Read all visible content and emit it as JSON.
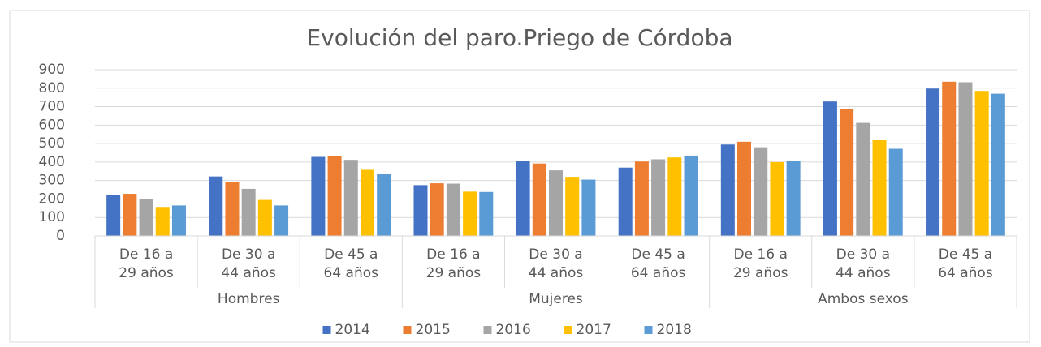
{
  "chart_data": {
    "type": "bar",
    "title": "Evolución del paro.Priego de Córdoba",
    "categories": [
      [
        "De 16 a",
        "29 años"
      ],
      [
        "De 30 a",
        "44 años"
      ],
      [
        "De 45 a",
        "64 años"
      ],
      [
        "De 16 a",
        "29 años"
      ],
      [
        "De 30 a",
        "44 años"
      ],
      [
        "De 45 a",
        "64 años"
      ],
      [
        "De 16 a",
        "29 años"
      ],
      [
        "De 30 a",
        "44 años"
      ],
      [
        "De 45 a",
        "64 años"
      ]
    ],
    "groups": [
      "Hombres",
      "Mujeres",
      "Ambos sexos"
    ],
    "series": [
      {
        "name": "2014",
        "color": "#4472c4",
        "values": [
          220,
          322,
          428,
          275,
          405,
          370,
          495,
          728,
          798
        ]
      },
      {
        "name": "2015",
        "color": "#ed7d31",
        "values": [
          228,
          293,
          432,
          285,
          392,
          403,
          510,
          685,
          835
        ]
      },
      {
        "name": "2016",
        "color": "#a5a5a5",
        "values": [
          200,
          255,
          412,
          283,
          355,
          415,
          480,
          612,
          832
        ]
      },
      {
        "name": "2017",
        "color": "#ffc000",
        "values": [
          157,
          195,
          358,
          240,
          320,
          425,
          400,
          518,
          785
        ]
      },
      {
        "name": "2018",
        "color": "#5b9bd5",
        "values": [
          165,
          165,
          338,
          238,
          305,
          435,
          408,
          472,
          770
        ]
      }
    ],
    "ylim": [
      0,
      900
    ],
    "yticks": [
      0,
      100,
      200,
      300,
      400,
      500,
      600,
      700,
      800,
      900
    ],
    "grid": true,
    "legend": "bottom"
  }
}
